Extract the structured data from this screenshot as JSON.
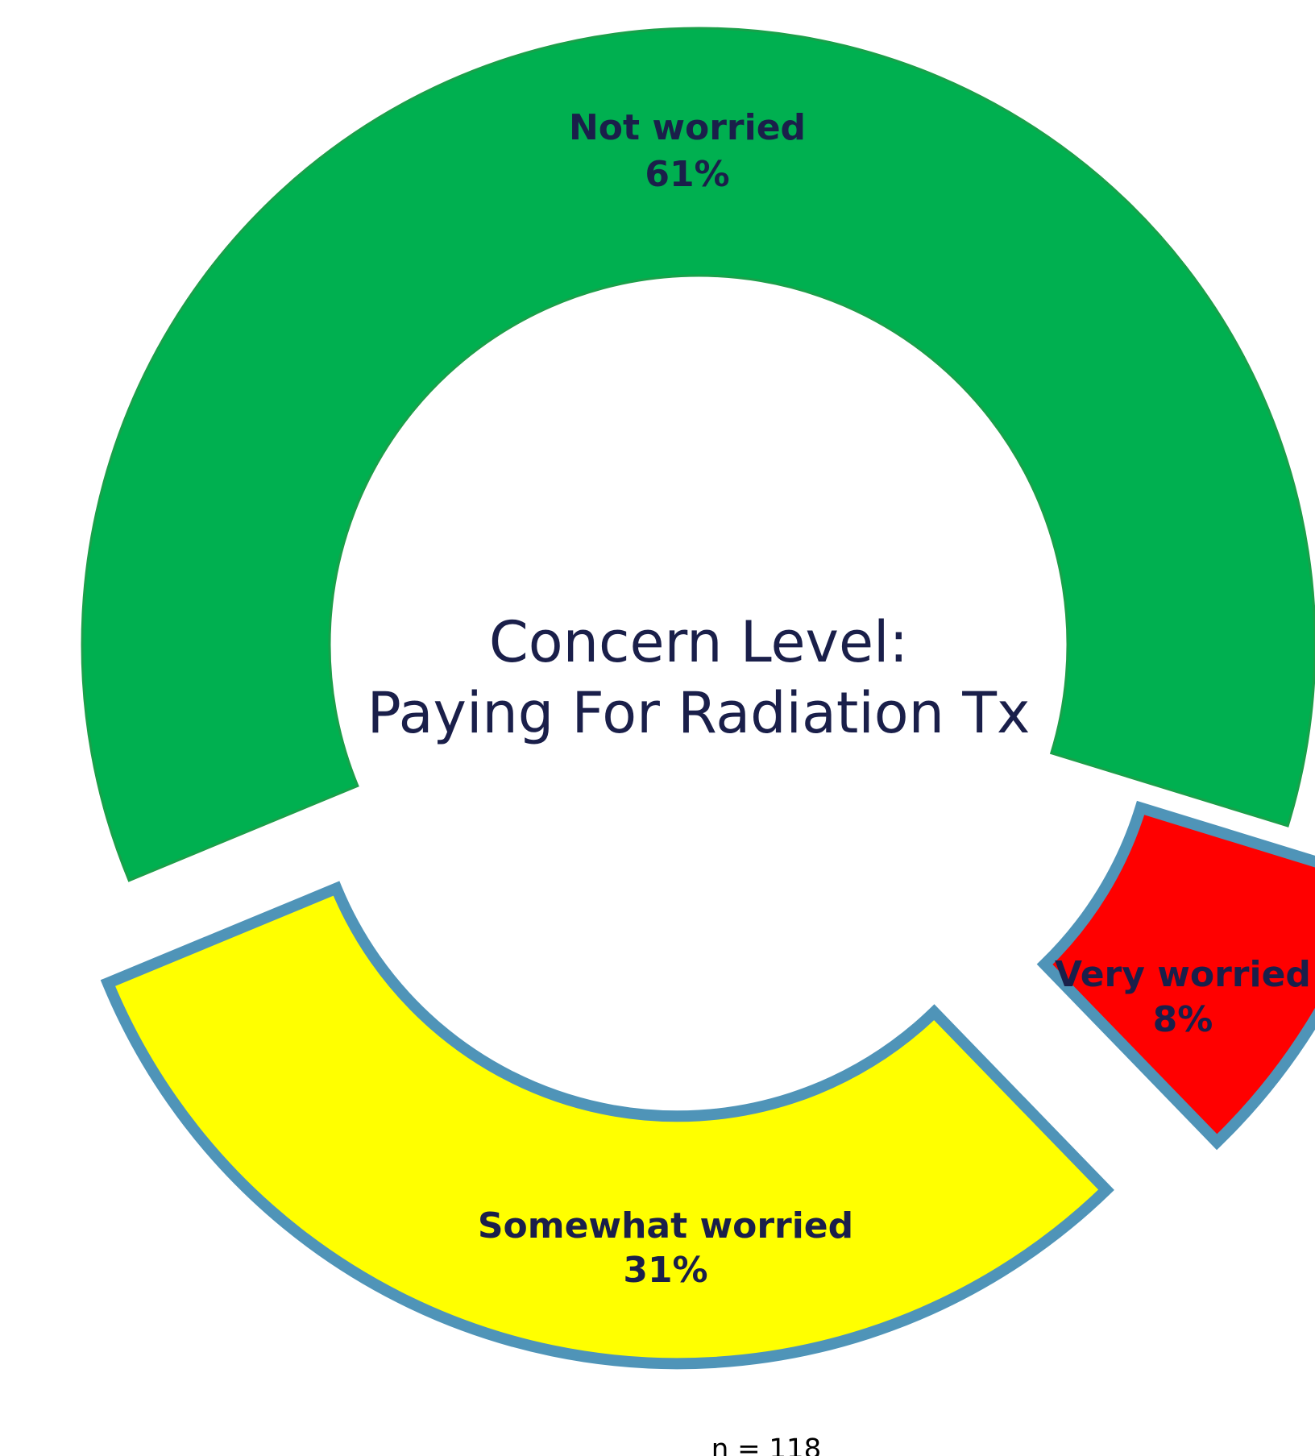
{
  "chart_data": {
    "type": "donut",
    "title": [
      "Concern Level:",
      "Paying For Radiation Tx"
    ],
    "categories": [
      "Not worried",
      "Very worried",
      "Somewhat worried"
    ],
    "values": [
      61,
      8,
      31
    ],
    "value_labels": [
      "61%",
      "8%",
      "31%"
    ],
    "colors": [
      "#00b050",
      "#ff0000",
      "#ffff00"
    ],
    "exploded": [
      false,
      true,
      true
    ],
    "annotation": "n = 118"
  }
}
